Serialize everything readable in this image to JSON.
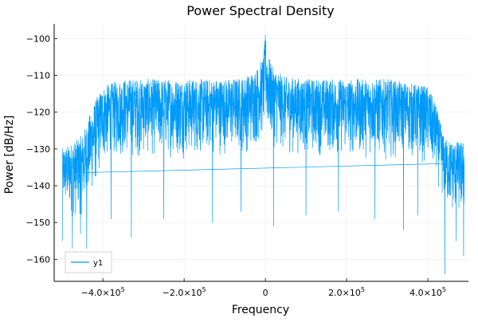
{
  "colors": {
    "series": "#009AF9",
    "grid": "#ececec",
    "axis": "#000000",
    "background": "#ffffff"
  },
  "chart_data": {
    "type": "line",
    "title": "Power Spectral Density",
    "xlabel": "Frequency",
    "ylabel": "Power [dB/Hz]",
    "xlim": [
      -520000,
      500000
    ],
    "ylim": [
      -166,
      -96
    ],
    "grid": true,
    "legend": {
      "position": "bottom-left",
      "entries": [
        "y1"
      ]
    },
    "x_ticks": [
      {
        "value": -400000,
        "mantissa": "−4.0×10",
        "exp": "5"
      },
      {
        "value": -200000,
        "mantissa": "−2.0×10",
        "exp": "5"
      },
      {
        "value": 0,
        "mantissa": "0",
        "exp": ""
      },
      {
        "value": 200000,
        "mantissa": "2.0×10",
        "exp": "5"
      },
      {
        "value": 400000,
        "mantissa": "4.0×10",
        "exp": "5"
      }
    ],
    "y_ticks": [
      {
        "value": -100,
        "label": "−100"
      },
      {
        "value": -110,
        "label": "−110"
      },
      {
        "value": -120,
        "label": "−120"
      },
      {
        "value": -130,
        "label": "−130"
      },
      {
        "value": -140,
        "label": "−140"
      },
      {
        "value": -150,
        "label": "−150"
      },
      {
        "value": -160,
        "label": "−160"
      }
    ],
    "series": [
      {
        "name": "y1",
        "envelope": {
          "x": [
            -500000,
            -470000,
            -450000,
            -420000,
            -400000,
            -350000,
            -300000,
            -200000,
            -100000,
            -50000,
            -20000,
            -5000,
            0,
            5000,
            20000,
            50000,
            100000,
            200000,
            300000,
            350000,
            400000,
            420000,
            440000,
            460000,
            490000
          ],
          "upper": [
            -130,
            -128,
            -126,
            -117,
            -113,
            -111,
            -111,
            -111,
            -111,
            -110.5,
            -108,
            -105,
            -99,
            -104,
            -108,
            -110.5,
            -111,
            -111,
            -111,
            -112,
            -113,
            -118,
            -127,
            -128,
            -128
          ],
          "lower": [
            -147,
            -150,
            -149,
            -142,
            -135,
            -133,
            -133,
            -133,
            -132,
            -132,
            -130,
            -128,
            -124,
            -128,
            -130,
            -132,
            -132,
            -133,
            -133,
            -133,
            -135,
            -139,
            -146,
            -149,
            -150
          ]
        },
        "dips": [
          {
            "x": -475000,
            "y": -157
          },
          {
            "x": -440000,
            "y": -157
          },
          {
            "x": -455000,
            "y": -153
          },
          {
            "x": -500000,
            "y": -155
          },
          {
            "x": -380000,
            "y": -149
          },
          {
            "x": -330000,
            "y": -154
          },
          {
            "x": -250000,
            "y": -149
          },
          {
            "x": -130000,
            "y": -150
          },
          {
            "x": -60000,
            "y": -147
          },
          {
            "x": 20000,
            "y": -151
          },
          {
            "x": 100000,
            "y": -148
          },
          {
            "x": 180000,
            "y": -147
          },
          {
            "x": 270000,
            "y": -149
          },
          {
            "x": 340000,
            "y": -152
          },
          {
            "x": 375000,
            "y": -148
          },
          {
            "x": 442000,
            "y": -164
          },
          {
            "x": 470000,
            "y": -155
          },
          {
            "x": 488000,
            "y": -159
          }
        ],
        "wrap_line": {
          "x": [
            440000,
            -470000
          ],
          "y": [
            -134,
            -136.5
          ]
        }
      }
    ]
  }
}
